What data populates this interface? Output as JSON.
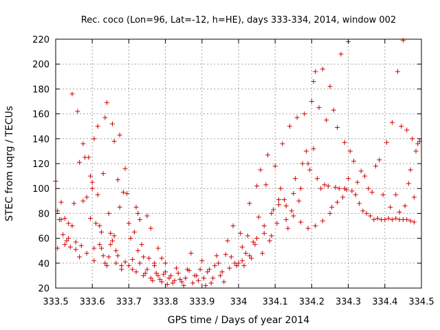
{
  "chart_data": {
    "type": "scatter",
    "title": "Rec. coco (Lon=96, Lat=-12, h=HE), days 333-334, 2014, window 002",
    "xlabel": "GPS time / Days of year 2014",
    "ylabel": "STEC from uqrg / TECUs",
    "xlim": [
      333.5,
      334.5
    ],
    "ylim": [
      20,
      220
    ],
    "grid": true,
    "marker": "+",
    "marker_color": "#cc0000",
    "xticks": [
      333.5,
      333.6,
      333.7,
      333.8,
      333.9,
      334.0,
      334.1,
      334.2,
      334.3,
      334.4,
      334.5
    ],
    "xtick_labels": [
      "333.5",
      "333.6",
      "333.7",
      "333.8",
      "333.9",
      "334",
      "334.1",
      "334.2",
      "334.3",
      "334.4",
      "334.5"
    ],
    "yticks": [
      20,
      40,
      60,
      80,
      100,
      120,
      140,
      160,
      180,
      200,
      220
    ],
    "ytick_labels": [
      "20",
      "40",
      "60",
      "80",
      "100",
      "120",
      "140",
      "160",
      "180",
      "200",
      "220"
    ],
    "points": [
      [
        333.5,
        106
      ],
      [
        333.505,
        82
      ],
      [
        333.51,
        75
      ],
      [
        333.515,
        89
      ],
      [
        333.52,
        63
      ],
      [
        333.525,
        55
      ],
      [
        333.53,
        58
      ],
      [
        333.535,
        72
      ],
      [
        333.54,
        53
      ],
      [
        333.545,
        176
      ],
      [
        333.55,
        88
      ],
      [
        333.555,
        51
      ],
      [
        333.56,
        162
      ],
      [
        333.565,
        121
      ],
      [
        333.57,
        54
      ],
      [
        333.575,
        136
      ],
      [
        333.58,
        125
      ],
      [
        333.585,
        48
      ],
      [
        333.59,
        125
      ],
      [
        333.595,
        110
      ],
      [
        333.6,
        100
      ],
      [
        333.605,
        140
      ],
      [
        333.61,
        72
      ],
      [
        333.615,
        150
      ],
      [
        333.62,
        70
      ],
      [
        333.625,
        52
      ],
      [
        333.63,
        112
      ],
      [
        333.635,
        157
      ],
      [
        333.64,
        169
      ],
      [
        333.645,
        45
      ],
      [
        333.65,
        64
      ],
      [
        333.655,
        152
      ],
      [
        333.66,
        138
      ],
      [
        333.665,
        40
      ],
      [
        333.67,
        107
      ],
      [
        333.675,
        143
      ],
      [
        333.68,
        35
      ],
      [
        333.505,
        52
      ],
      [
        333.515,
        75
      ],
      [
        333.525,
        76
      ],
      [
        333.535,
        60
      ],
      [
        333.545,
        70
      ],
      [
        333.555,
        57
      ],
      [
        333.565,
        45
      ],
      [
        333.575,
        90
      ],
      [
        333.585,
        93
      ],
      [
        333.595,
        76
      ],
      [
        333.605,
        42
      ],
      [
        333.615,
        95
      ],
      [
        333.625,
        65
      ],
      [
        333.635,
        40
      ],
      [
        333.645,
        80
      ],
      [
        333.655,
        58
      ],
      [
        333.665,
        50
      ],
      [
        333.675,
        85
      ],
      [
        333.685,
        97
      ],
      [
        333.69,
        116
      ],
      [
        333.695,
        96
      ],
      [
        333.6,
        105
      ],
      [
        333.605,
        52
      ],
      [
        333.62,
        55
      ],
      [
        333.63,
        46
      ],
      [
        333.64,
        38
      ],
      [
        333.65,
        55
      ],
      [
        333.66,
        62
      ],
      [
        333.67,
        46
      ],
      [
        333.68,
        38
      ],
      [
        333.69,
        41
      ],
      [
        333.7,
        72
      ],
      [
        333.71,
        35
      ],
      [
        333.72,
        85
      ],
      [
        333.725,
        80
      ],
      [
        333.73,
        75
      ],
      [
        333.74,
        45
      ],
      [
        333.75,
        78
      ],
      [
        333.76,
        68
      ],
      [
        333.77,
        40
      ],
      [
        333.78,
        52
      ],
      [
        333.79,
        44
      ],
      [
        333.8,
        40
      ],
      [
        333.7,
        38
      ],
      [
        333.71,
        43
      ],
      [
        333.72,
        33
      ],
      [
        333.73,
        40
      ],
      [
        333.74,
        30
      ],
      [
        333.75,
        35
      ],
      [
        333.76,
        28
      ],
      [
        333.77,
        38
      ],
      [
        333.78,
        30
      ],
      [
        333.79,
        25
      ],
      [
        333.8,
        33
      ],
      [
        333.81,
        28
      ],
      [
        333.82,
        24
      ],
      [
        333.83,
        36
      ],
      [
        333.84,
        27
      ],
      [
        333.85,
        22
      ],
      [
        333.86,
        35
      ],
      [
        333.87,
        48
      ],
      [
        333.88,
        30
      ],
      [
        333.89,
        26
      ],
      [
        333.9,
        42
      ],
      [
        333.91,
        22
      ],
      [
        333.92,
        35
      ],
      [
        333.93,
        28
      ],
      [
        333.94,
        46
      ],
      [
        333.95,
        30
      ],
      [
        333.96,
        25
      ],
      [
        333.97,
        58
      ],
      [
        333.98,
        45
      ],
      [
        333.99,
        40
      ],
      [
        333.705,
        60
      ],
      [
        333.715,
        65
      ],
      [
        333.725,
        50
      ],
      [
        333.735,
        55
      ],
      [
        333.745,
        32
      ],
      [
        333.755,
        44
      ],
      [
        333.765,
        26
      ],
      [
        333.775,
        32
      ],
      [
        333.785,
        27
      ],
      [
        333.795,
        31
      ],
      [
        333.805,
        23
      ],
      [
        333.815,
        30
      ],
      [
        333.825,
        26
      ],
      [
        333.835,
        32
      ],
      [
        333.845,
        25
      ],
      [
        333.855,
        28
      ],
      [
        333.865,
        34
      ],
      [
        333.875,
        24
      ],
      [
        333.885,
        30
      ],
      [
        333.895,
        35
      ],
      [
        333.905,
        28
      ],
      [
        333.915,
        33
      ],
      [
        333.925,
        24
      ],
      [
        333.935,
        38
      ],
      [
        333.945,
        40
      ],
      [
        333.955,
        33
      ],
      [
        333.965,
        47
      ],
      [
        333.975,
        36
      ],
      [
        333.985,
        70
      ],
      [
        333.995,
        38
      ],
      [
        334.0,
        40
      ],
      [
        334.01,
        53
      ],
      [
        334.02,
        48
      ],
      [
        334.03,
        88
      ],
      [
        334.04,
        57
      ],
      [
        334.05,
        102
      ],
      [
        334.06,
        115
      ],
      [
        334.07,
        70
      ],
      [
        334.08,
        127
      ],
      [
        334.09,
        62
      ],
      [
        334.1,
        118
      ],
      [
        334.11,
        87
      ],
      [
        334.12,
        136
      ],
      [
        334.13,
        75
      ],
      [
        334.14,
        150
      ],
      [
        334.15,
        96
      ],
      [
        334.16,
        157
      ],
      [
        334.17,
        100
      ],
      [
        334.18,
        160
      ],
      [
        334.19,
        120
      ],
      [
        334.2,
        170
      ],
      [
        334.205,
        186
      ],
      [
        334.21,
        194
      ],
      [
        334.22,
        165
      ],
      [
        334.23,
        196
      ],
      [
        334.24,
        155
      ],
      [
        334.25,
        182
      ],
      [
        334.26,
        163
      ],
      [
        334.27,
        149
      ],
      [
        334.28,
        208
      ],
      [
        334.29,
        137
      ],
      [
        334.005,
        64
      ],
      [
        334.015,
        38
      ],
      [
        334.025,
        62
      ],
      [
        334.035,
        44
      ],
      [
        334.045,
        55
      ],
      [
        334.055,
        77
      ],
      [
        334.065,
        48
      ],
      [
        334.075,
        103
      ],
      [
        334.085,
        58
      ],
      [
        334.095,
        83
      ],
      [
        334.105,
        72
      ],
      [
        334.115,
        100
      ],
      [
        334.125,
        91
      ],
      [
        334.135,
        68
      ],
      [
        334.145,
        82
      ],
      [
        334.155,
        108
      ],
      [
        334.165,
        90
      ],
      [
        334.175,
        120
      ],
      [
        334.185,
        130
      ],
      [
        334.195,
        115
      ],
      [
        334.205,
        132
      ],
      [
        334.215,
        108
      ],
      [
        334.225,
        100
      ],
      [
        334.235,
        103
      ],
      [
        334.245,
        102
      ],
      [
        334.255,
        85
      ],
      [
        334.265,
        101
      ],
      [
        334.275,
        100
      ],
      [
        334.285,
        93
      ],
      [
        334.295,
        99
      ],
      [
        334.01,
        42
      ],
      [
        334.03,
        46
      ],
      [
        334.05,
        60
      ],
      [
        334.07,
        64
      ],
      [
        334.09,
        80
      ],
      [
        334.11,
        91
      ],
      [
        334.13,
        86
      ],
      [
        334.15,
        78
      ],
      [
        334.17,
        73
      ],
      [
        334.19,
        68
      ],
      [
        334.21,
        70
      ],
      [
        334.23,
        74
      ],
      [
        334.25,
        80
      ],
      [
        334.27,
        89
      ],
      [
        334.29,
        100
      ],
      [
        334.3,
        108
      ],
      [
        334.31,
        98
      ],
      [
        334.32,
        95
      ],
      [
        334.33,
        88
      ],
      [
        334.34,
        82
      ],
      [
        334.35,
        80
      ],
      [
        334.36,
        78
      ],
      [
        334.37,
        75
      ],
      [
        334.38,
        76
      ],
      [
        334.39,
        75
      ],
      [
        334.4,
        75
      ],
      [
        334.41,
        76
      ],
      [
        334.42,
        75
      ],
      [
        334.43,
        76
      ],
      [
        334.44,
        75
      ],
      [
        334.45,
        75
      ],
      [
        334.46,
        75
      ],
      [
        334.47,
        74
      ],
      [
        334.48,
        73
      ],
      [
        334.3,
        218
      ],
      [
        334.305,
        130
      ],
      [
        334.315,
        122
      ],
      [
        334.325,
        105
      ],
      [
        334.335,
        114
      ],
      [
        334.345,
        110
      ],
      [
        334.355,
        100
      ],
      [
        334.365,
        97
      ],
      [
        334.375,
        118
      ],
      [
        334.385,
        123
      ],
      [
        334.395,
        95
      ],
      [
        334.405,
        137
      ],
      [
        334.415,
        85
      ],
      [
        334.42,
        153
      ],
      [
        334.43,
        95
      ],
      [
        334.435,
        194
      ],
      [
        334.44,
        81
      ],
      [
        334.445,
        150
      ],
      [
        334.45,
        219
      ],
      [
        334.455,
        86
      ],
      [
        334.46,
        147
      ],
      [
        334.465,
        104
      ],
      [
        334.47,
        115
      ],
      [
        334.475,
        140
      ],
      [
        334.48,
        93
      ],
      [
        334.485,
        130
      ],
      [
        334.49,
        136
      ],
      [
        334.495,
        138
      ]
    ]
  }
}
